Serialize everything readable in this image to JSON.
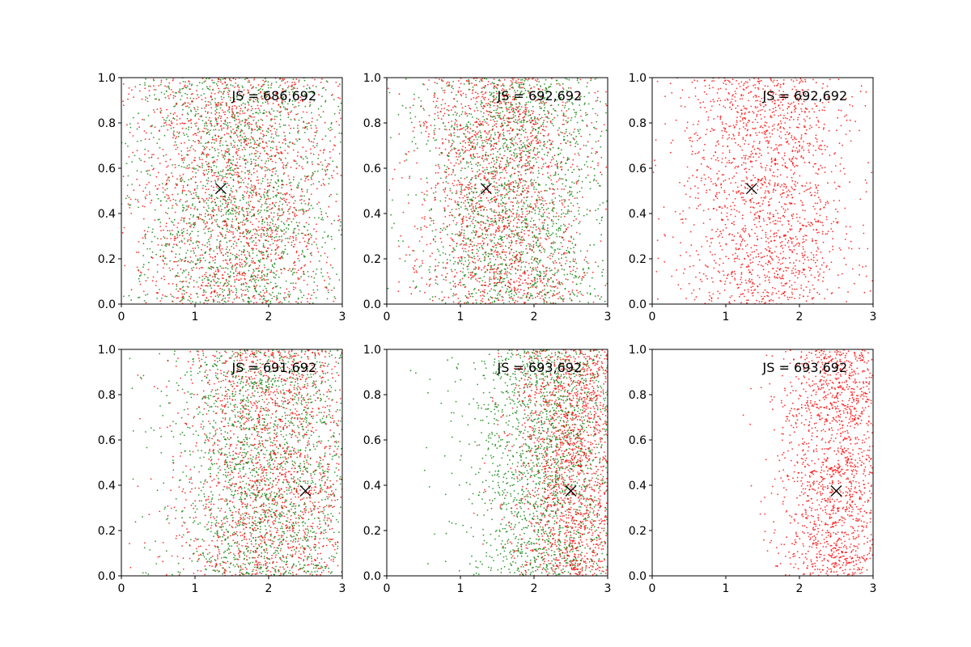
{
  "chart_data": [
    {
      "type": "scatter",
      "title": "",
      "xlabel": "",
      "ylabel": "",
      "xlim": [
        0,
        3
      ],
      "ylim": [
        0,
        1
      ],
      "xticks": [
        "0",
        "1",
        "2",
        "3"
      ],
      "yticks": [
        "0.0",
        "0.2",
        "0.4",
        "0.6",
        "0.8",
        "1.0"
      ],
      "grid": false,
      "annotation": "JS = 686,692",
      "marker": {
        "symbol": "x",
        "x": 1.35,
        "y": 0.51,
        "color": "#000000"
      },
      "series": [
        {
          "color": "#008000",
          "count": 686,
          "distribution": {
            "x_center": 1.6,
            "x_spread": 0.75,
            "y_range": [
              0,
              1
            ]
          }
        },
        {
          "color": "#ff0000",
          "count": 692,
          "distribution": {
            "x_center": 1.6,
            "x_spread": 0.75,
            "y_range": [
              0,
              1
            ]
          }
        }
      ]
    },
    {
      "type": "scatter",
      "title": "",
      "xlabel": "",
      "ylabel": "",
      "xlim": [
        0,
        3
      ],
      "ylim": [
        0,
        1
      ],
      "xticks": [
        "0",
        "1",
        "2",
        "3"
      ],
      "yticks": [
        "0.0",
        "0.2",
        "0.4",
        "0.6",
        "0.8",
        "1.0"
      ],
      "grid": false,
      "annotation": "JS = 692,692",
      "marker": {
        "symbol": "x",
        "x": 1.35,
        "y": 0.51,
        "color": "#000000"
      },
      "series": [
        {
          "color": "#008000",
          "count": 692,
          "distribution": {
            "x_center": 1.75,
            "x_spread": 0.65,
            "y_range": [
              0,
              1
            ]
          }
        },
        {
          "color": "#ff0000",
          "count": 692,
          "distribution": {
            "x_center": 1.55,
            "x_spread": 0.6,
            "y_range": [
              0,
              1
            ]
          }
        }
      ]
    },
    {
      "type": "scatter",
      "title": "",
      "xlabel": "",
      "ylabel": "",
      "xlim": [
        0,
        3
      ],
      "ylim": [
        0,
        1
      ],
      "xticks": [
        "0",
        "1",
        "2",
        "3"
      ],
      "yticks": [
        "0.0",
        "0.2",
        "0.4",
        "0.6",
        "0.8",
        "1.0"
      ],
      "grid": false,
      "annotation": "JS = 692,692",
      "marker": {
        "symbol": "x",
        "x": 1.35,
        "y": 0.51,
        "color": "#000000"
      },
      "series": [
        {
          "color": "#ff0000",
          "count": 692,
          "distribution": {
            "x_center": 1.55,
            "x_spread": 0.6,
            "y_range": [
              0,
              1
            ]
          }
        }
      ]
    },
    {
      "type": "scatter",
      "title": "",
      "xlabel": "",
      "ylabel": "",
      "xlim": [
        0,
        3
      ],
      "ylim": [
        0,
        1
      ],
      "xticks": [
        "0",
        "1",
        "2",
        "3"
      ],
      "yticks": [
        "0.0",
        "0.2",
        "0.4",
        "0.6",
        "0.8",
        "1.0"
      ],
      "grid": false,
      "annotation": "JS = 691,692",
      "marker": {
        "symbol": "x",
        "x": 2.5,
        "y": 0.375,
        "color": "#000000"
      },
      "series": [
        {
          "color": "#008000",
          "count": 691,
          "distribution": {
            "x_center": 2.0,
            "x_spread": 0.65,
            "y_range": [
              0,
              1
            ]
          }
        },
        {
          "color": "#ff0000",
          "count": 692,
          "distribution": {
            "x_center": 2.05,
            "x_spread": 0.65,
            "y_range": [
              0,
              1
            ]
          }
        }
      ]
    },
    {
      "type": "scatter",
      "title": "",
      "xlabel": "",
      "ylabel": "",
      "xlim": [
        0,
        3
      ],
      "ylim": [
        0,
        1
      ],
      "xticks": [
        "0",
        "1",
        "2",
        "3"
      ],
      "yticks": [
        "0.0",
        "0.2",
        "0.4",
        "0.6",
        "0.8",
        "1.0"
      ],
      "grid": false,
      "annotation": "JS = 693,692",
      "marker": {
        "symbol": "x",
        "x": 2.5,
        "y": 0.375,
        "color": "#000000"
      },
      "series": [
        {
          "color": "#008000",
          "count": 693,
          "distribution": {
            "x_center": 2.2,
            "x_spread": 0.55,
            "y_range": [
              0,
              1
            ]
          }
        },
        {
          "color": "#ff0000",
          "count": 692,
          "distribution": {
            "x_center": 2.55,
            "x_spread": 0.4,
            "y_range": [
              0,
              1
            ]
          }
        }
      ]
    },
    {
      "type": "scatter",
      "title": "",
      "xlabel": "",
      "ylabel": "",
      "xlim": [
        0,
        3
      ],
      "ylim": [
        0,
        1
      ],
      "xticks": [
        "0",
        "1",
        "2",
        "3"
      ],
      "yticks": [
        "0.0",
        "0.2",
        "0.4",
        "0.6",
        "0.8",
        "1.0"
      ],
      "grid": false,
      "annotation": "JS = 693,692",
      "marker": {
        "symbol": "x",
        "x": 2.5,
        "y": 0.375,
        "color": "#000000"
      },
      "series": [
        {
          "color": "#ff0000",
          "count": 692,
          "distribution": {
            "x_center": 2.55,
            "x_spread": 0.4,
            "y_range": [
              0,
              1
            ]
          }
        }
      ]
    }
  ]
}
